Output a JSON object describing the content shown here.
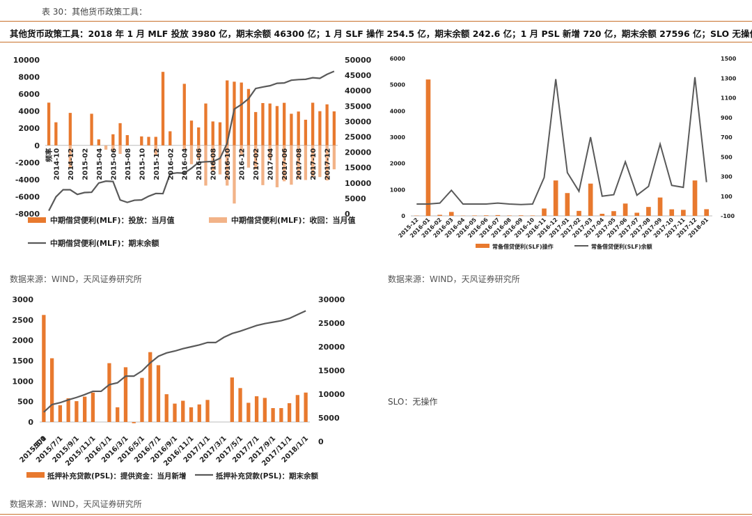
{
  "caption": "表 30：其他货币政策工具：",
  "summary": "其他货币政策工具：2018 年 1 月 MLF 投放 3980 亿，期末余额 46300 亿；1 月 SLF 操作 254.5 亿，期末余额 242.6 亿；1 月 PSL 新增 720 亿，期末余额 27596 亿；SLO 无操作。",
  "source_note": "数据来源：WIND，天风证券研究所",
  "slo_note": "SLO：无操作",
  "colors": {
    "bar": "#e8792e",
    "bar_light": "#f2b388",
    "line": "#595959",
    "rule": "#c8702a"
  },
  "chart_data": [
    {
      "type": "bar",
      "id": "mlf",
      "y_left": {
        "lim": [
          -8000,
          10000
        ],
        "ticks": [
          10000,
          8000,
          6000,
          4000,
          2000,
          0,
          -2000,
          -4000,
          -6000,
          -8000
        ]
      },
      "y_right": {
        "lim": [
          0,
          50000
        ],
        "ticks": [
          50000,
          45000,
          40000,
          35000,
          30000,
          25000,
          20000,
          15000,
          10000,
          5000,
          0
        ]
      },
      "x_tick_labels": [
        "频率",
        "2014-10",
        "2014-12",
        "2015-02",
        "2015-04",
        "2015-06",
        "2015-08",
        "2015-10",
        "2015-12",
        "2016-02",
        "2016-04",
        "2016-06",
        "2016-08",
        "2016-10",
        "2016-12",
        "2017-02",
        "2017-04",
        "2017-06",
        "2017-08",
        "2017-10",
        "2017-12"
      ],
      "x_tick_index": [
        0,
        1,
        3,
        5,
        7,
        9,
        11,
        13,
        15,
        17,
        19,
        21,
        23,
        25,
        27,
        29,
        31,
        33,
        35,
        37,
        39
      ],
      "categories": [
        "2014-09",
        "2014-10",
        "2014-11",
        "2014-12",
        "2015-01",
        "2015-02",
        "2015-03",
        "2015-04",
        "2015-05",
        "2015-06",
        "2015-07",
        "2015-08",
        "2015-09",
        "2015-10",
        "2015-11",
        "2015-12",
        "2016-01",
        "2016-02",
        "2016-03",
        "2016-04",
        "2016-05",
        "2016-06",
        "2016-07",
        "2016-08",
        "2016-09",
        "2016-10",
        "2016-11",
        "2016-12",
        "2017-01",
        "2017-02",
        "2017-03",
        "2017-04",
        "2017-05",
        "2017-06",
        "2017-07",
        "2017-08",
        "2017-09",
        "2017-10",
        "2017-11",
        "2017-12",
        "2018-01"
      ],
      "series": [
        {
          "name": "中期借贷便利(MLF)：投放：当月值",
          "kind": "bar",
          "axis": "left",
          "values": [
            5000,
            2700,
            0,
            3800,
            0,
            0,
            3700,
            700,
            0,
            1300,
            2600,
            1200,
            0,
            1050,
            1000,
            1000,
            8600,
            1650,
            0,
            7200,
            2900,
            2100,
            4900,
            2800,
            2700,
            7600,
            7450,
            7350,
            6600,
            3900,
            4950,
            4900,
            4600,
            4980,
            3700,
            3960,
            3000,
            4990,
            4000,
            4800,
            3980
          ]
        },
        {
          "name": "中期借贷便利(MLF)：收回：当月值",
          "kind": "bar",
          "axis": "left",
          "values": [
            0,
            0,
            0,
            -2700,
            0,
            0,
            0,
            0,
            -500,
            -700,
            -1000,
            0,
            0,
            0,
            0,
            -1200,
            0,
            0,
            0,
            -500,
            -2200,
            -1700,
            -4700,
            -3000,
            -3400,
            -4700,
            -6800,
            -1200,
            -2600,
            -2800,
            -4650,
            -1700,
            -4900,
            -4200,
            -4600,
            -3950,
            -4050,
            -3700,
            -3700,
            -4100,
            -2800
          ]
        },
        {
          "name": "中期借贷便利(MLF)：期末余额",
          "kind": "line",
          "axis": "right",
          "values": [
            1000,
            5500,
            7800,
            7800,
            6300,
            6900,
            7000,
            10000,
            10600,
            10500,
            4500,
            3700,
            4400,
            4500,
            5700,
            6600,
            6550,
            13000,
            13300,
            13200,
            14800,
            16700,
            16900,
            17000,
            18000,
            22900,
            34000,
            35500,
            37400,
            40700,
            41200,
            41600,
            42400,
            42500,
            43400,
            43600,
            43700,
            44200,
            44000,
            45300,
            46300
          ]
        }
      ],
      "legend": [
        "中期借贷便利(MLF)：投放：当月值",
        "中期借贷便利(MLF)：收回：当月值",
        "中期借贷便利(MLF)：期末余额"
      ]
    },
    {
      "type": "bar",
      "id": "slf",
      "y_left": {
        "lim": [
          0,
          6000
        ],
        "ticks": [
          6000,
          5000,
          4000,
          3000,
          2000,
          1000,
          0
        ]
      },
      "y_right": {
        "lim": [
          -100,
          1500
        ],
        "ticks": [
          1500,
          1300,
          1100,
          900,
          700,
          500,
          300,
          100,
          -100
        ]
      },
      "categories": [
        "2015-12",
        "2016-01",
        "2016-02",
        "2016-03",
        "2016-04",
        "2016-05",
        "2016-06",
        "2016-07",
        "2016-08",
        "2016-09",
        "2016-10",
        "2016-11",
        "2016-12",
        "2017-01",
        "2017-02",
        "2017-03",
        "2017-04",
        "2017-05",
        "2017-06",
        "2017-07",
        "2017-08",
        "2017-09",
        "2017-10",
        "2017-11",
        "2017-12",
        "2018-01"
      ],
      "series": [
        {
          "name": "常备借贷便利(SLF)操作",
          "kind": "bar",
          "axis": "left",
          "values": [
            10,
            5200,
            40,
            150,
            10,
            15,
            20,
            30,
            15,
            20,
            15,
            280,
            1350,
            870,
            190,
            1230,
            80,
            180,
            470,
            120,
            340,
            700,
            250,
            230,
            1350,
            254.5
          ]
        },
        {
          "name": "常备借贷便利(SLF)余额",
          "kind": "line",
          "axis": "right",
          "values": [
            20,
            20,
            30,
            160,
            20,
            20,
            20,
            30,
            20,
            15,
            20,
            290,
            1290,
            340,
            150,
            700,
            100,
            115,
            450,
            110,
            200,
            630,
            210,
            190,
            1310,
            242.6
          ]
        }
      ],
      "legend": [
        "常备借贷便利(SLF)操作",
        "常备借贷便利(SLF)余额"
      ]
    },
    {
      "type": "bar",
      "id": "psl",
      "y_left": {
        "lim": [
          0,
          3000
        ],
        "ticks": [
          3000,
          2500,
          2000,
          1500,
          1000,
          500,
          0
        ]
      },
      "y_right": {
        "lim": [
          0,
          30000
        ],
        "ticks": [
          30000,
          25000,
          20000,
          15000,
          10000,
          5000,
          0
        ]
      },
      "x_tick_labels": [
        "-500",
        "2015/5/1",
        "2015/7/1",
        "2015/9/1",
        "2015/11/1",
        "2016/1/1",
        "2016/3/1",
        "2016/5/1",
        "2016/7/1",
        "2016/9/1",
        "2016/11/1",
        "2017/1/1",
        "2017/3/1",
        "2017/5/1",
        "2017/7/1",
        "2017/9/1",
        "2017/11/1",
        "2018/1/1"
      ],
      "categories": [
        "2015/5/1",
        "2015/6/1",
        "2015/7/1",
        "2015/8/1",
        "2015/9/1",
        "2015/10/1",
        "2015/11/1",
        "2015/12/1",
        "2016/1/1",
        "2016/2/1",
        "2016/3/1",
        "2016/4/1",
        "2016/5/1",
        "2016/6/1",
        "2016/7/1",
        "2016/8/1",
        "2016/9/1",
        "2016/10/1",
        "2016/11/1",
        "2016/12/1",
        "2017/1/1",
        "2017/2/1",
        "2017/3/1",
        "2017/4/1",
        "2017/5/1",
        "2017/6/1",
        "2017/7/1",
        "2017/8/1",
        "2017/9/1",
        "2017/10/1",
        "2017/11/1",
        "2017/12/1",
        "2018/1/1"
      ],
      "series": [
        {
          "name": "抵押补充贷款(PSL)：提供资金：当月新增",
          "kind": "bar",
          "axis": "left",
          "values": [
            2620,
            1560,
            410,
            580,
            510,
            620,
            720,
            0,
            1440,
            360,
            1340,
            -30,
            1080,
            1710,
            1390,
            680,
            450,
            520,
            360,
            430,
            540,
            0,
            0,
            1090,
            830,
            470,
            630,
            590,
            340,
            340,
            460,
            660,
            720
          ]
        },
        {
          "name": "抵押补充贷款(PSL)：期末余额",
          "kind": "line",
          "axis": "right",
          "values": [
            6200,
            7800,
            8200,
            8800,
            9300,
            9900,
            10600,
            10600,
            12000,
            12400,
            13800,
            13800,
            14900,
            16600,
            18000,
            18700,
            19100,
            19600,
            20000,
            20400,
            20900,
            20900,
            22000,
            22800,
            23300,
            23900,
            24500,
            24900,
            25200,
            25500,
            26000,
            26800,
            27596
          ]
        }
      ],
      "legend": [
        "抵押补充贷款(PSL)：提供资金：当月新增",
        "抵押补充贷款(PSL)：期末余额"
      ]
    }
  ]
}
